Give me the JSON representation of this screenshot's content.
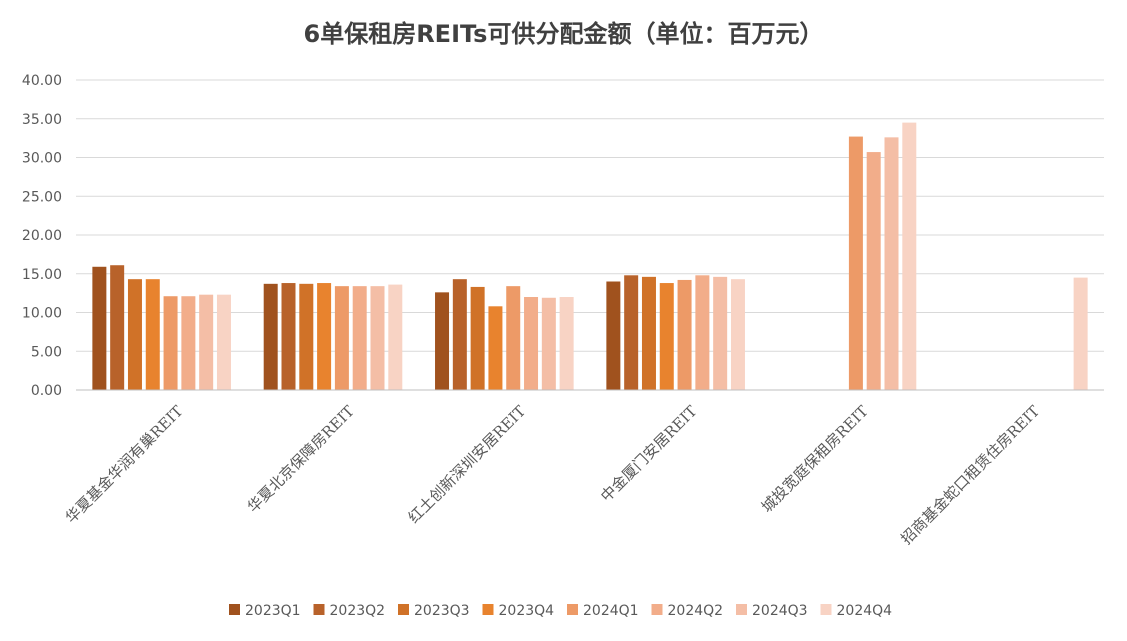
{
  "chart_data": {
    "type": "bar",
    "title": "6单保租房REITs可供分配金额（单位：百万元）",
    "xlabel": "",
    "ylabel": "",
    "ylim": [
      0,
      40
    ],
    "yticks": [
      "0.00",
      "5.00",
      "10.00",
      "15.00",
      "20.00",
      "25.00",
      "30.00",
      "35.00",
      "40.00"
    ],
    "grid": true,
    "legend_position": "bottom",
    "categories": [
      "华夏基金华润有巢REIT",
      "华夏北京保障房REIT",
      "红土创新深圳安居REIT",
      "中金厦门安居REIT",
      "城投宽庭保租房REIT",
      "招商基金蛇口租赁住房REIT"
    ],
    "series": [
      {
        "name": "2023Q1",
        "color": "#a0521e",
        "values": [
          15.9,
          13.7,
          12.6,
          14.0,
          null,
          null
        ]
      },
      {
        "name": "2023Q2",
        "color": "#b8622a",
        "values": [
          16.1,
          13.8,
          14.3,
          14.8,
          null,
          null
        ]
      },
      {
        "name": "2023Q3",
        "color": "#d07228",
        "values": [
          14.3,
          13.7,
          13.3,
          14.6,
          null,
          null
        ]
      },
      {
        "name": "2023Q4",
        "color": "#e8832e",
        "values": [
          14.3,
          13.8,
          10.8,
          13.8,
          null,
          null
        ]
      },
      {
        "name": "2024Q1",
        "color": "#ed9a67",
        "values": [
          12.1,
          13.4,
          13.4,
          14.2,
          32.7,
          null
        ]
      },
      {
        "name": "2024Q2",
        "color": "#f2ad8a",
        "values": [
          12.1,
          13.4,
          12.0,
          14.8,
          30.7,
          null
        ]
      },
      {
        "name": "2024Q3",
        "color": "#f4bea6",
        "values": [
          12.3,
          13.4,
          11.9,
          14.6,
          32.6,
          null
        ]
      },
      {
        "name": "2024Q4",
        "color": "#f8d3c4",
        "values": [
          12.3,
          13.6,
          12.0,
          14.3,
          34.5,
          14.5
        ]
      }
    ]
  }
}
